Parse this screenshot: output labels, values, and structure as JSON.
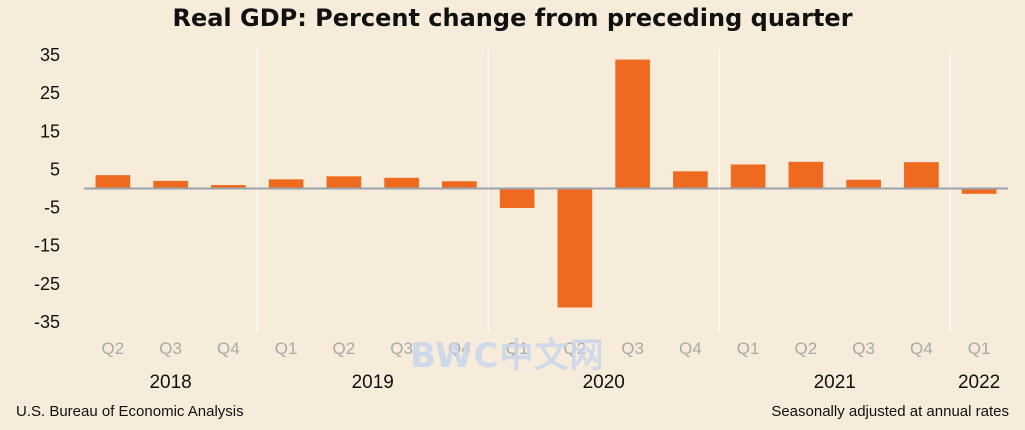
{
  "chart_data": {
    "type": "bar",
    "title": "Real GDP:  Percent change from preceding quarter",
    "categories": [
      "Q2",
      "Q3",
      "Q4",
      "Q1",
      "Q2",
      "Q3",
      "Q4",
      "Q1",
      "Q2",
      "Q3",
      "Q4",
      "Q1",
      "Q2",
      "Q3",
      "Q4",
      "Q1"
    ],
    "years": [
      {
        "label": "2018",
        "start": 0,
        "end": 2
      },
      {
        "label": "2019",
        "start": 3,
        "end": 6
      },
      {
        "label": "2020",
        "start": 7,
        "end": 10
      },
      {
        "label": "2021",
        "start": 11,
        "end": 14
      },
      {
        "label": "2022",
        "start": 15,
        "end": 15
      }
    ],
    "values": [
      3.5,
      2.0,
      0.9,
      2.4,
      3.2,
      2.8,
      1.9,
      -5.1,
      -31.2,
      33.8,
      4.5,
      6.3,
      7.0,
      2.3,
      6.9,
      -1.4
    ],
    "yticks": [
      35,
      25,
      15,
      5,
      -5,
      -15,
      -25,
      -35
    ],
    "ylim": [
      -35,
      35
    ],
    "grid": true,
    "bar_color": "#ee6a1e",
    "tick_label_color": "#a9a9a9"
  },
  "footer": {
    "source": "U.S. Bureau of Economic Analysis",
    "note": "Seasonally adjusted at annual rates"
  },
  "watermark": "BWC中文网"
}
